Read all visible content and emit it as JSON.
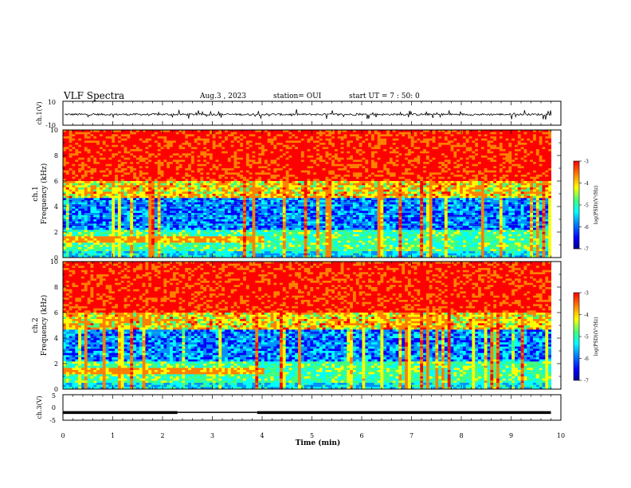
{
  "header": {
    "title": "VLF Spectra",
    "date": "Aug.3 , 2023",
    "station": "station= OUI",
    "start": "start UT = 7 : 50: 0"
  },
  "chart_data": [
    {
      "type": "line",
      "ylabel": "ch.1(V)",
      "ylim": [
        -10,
        10
      ],
      "y_ticks": [
        "10",
        "-10"
      ],
      "x": [
        0,
        10
      ],
      "description_level": "noisy signal around -1 V with spikes up to about ±4 V"
    },
    {
      "type": "heatmap",
      "ylabel_top": "ch.1",
      "ylabel": "Frequency (kHz)",
      "ylim": [
        0,
        10
      ],
      "y_ticks": [
        "0",
        "2",
        "4",
        "6",
        "8",
        "10"
      ],
      "xlim": [
        0,
        10
      ],
      "colorbar": {
        "label": "log(PSD)(V²/Hz)",
        "range": [
          -7,
          -3
        ],
        "ticks": [
          "-3",
          "-4",
          "-5",
          "-6",
          "-7"
        ]
      }
    },
    {
      "type": "heatmap",
      "ylabel_top": "ch.2",
      "ylabel": "Frequency (kHz)",
      "ylim": [
        0,
        10
      ],
      "y_ticks": [
        "0",
        "2",
        "4",
        "6",
        "8",
        "10"
      ],
      "xlim": [
        0,
        10
      ],
      "colorbar": {
        "label": "log(PSD)(V²/Hz)",
        "range": [
          -7,
          -3
        ],
        "ticks": [
          "-3",
          "-4",
          "-5",
          "-6",
          "-7"
        ]
      }
    },
    {
      "type": "line",
      "ylabel": "ch.3(V)",
      "ylim": [
        -5,
        5
      ],
      "y_ticks": [
        "5",
        "0",
        "-5"
      ],
      "xlabel": "Time (min)",
      "x_ticks": [
        "0",
        "1",
        "2",
        "3",
        "4",
        "5",
        "6",
        "7",
        "8",
        "9",
        "10"
      ],
      "xlim": [
        0,
        10
      ],
      "segments": [
        {
          "x": [
            0,
            2.3
          ],
          "y": -2.0
        },
        {
          "x": [
            2.3,
            3.9
          ],
          "y": -1.9
        },
        {
          "x": [
            3.9,
            9.8
          ],
          "y": -2.0
        }
      ]
    }
  ],
  "colors": {
    "colormap": [
      "#00008f",
      "#0000ff",
      "#0090ff",
      "#00ffff",
      "#40ff80",
      "#ffff00",
      "#ff8000",
      "#ff0000"
    ]
  }
}
